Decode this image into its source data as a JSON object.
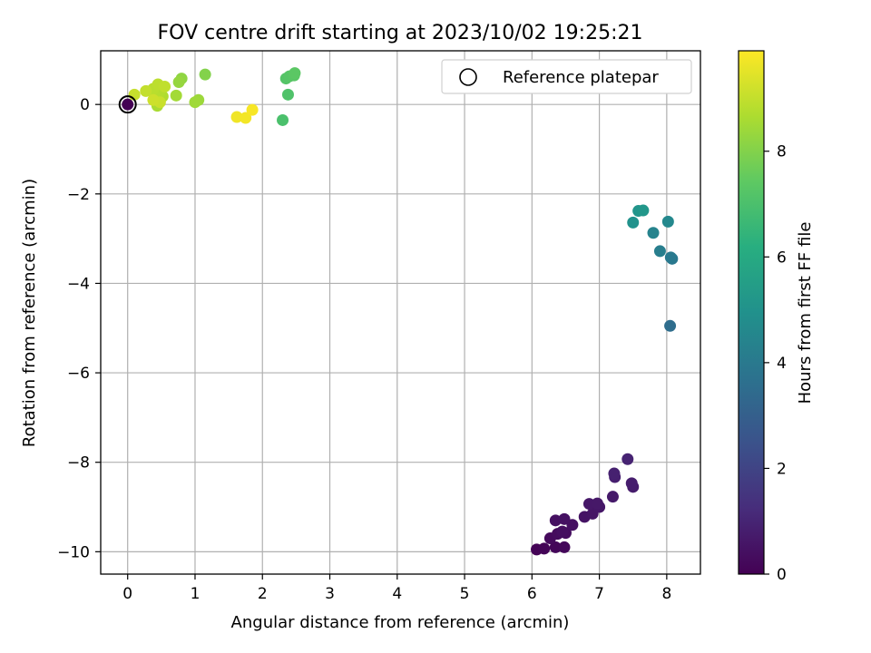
{
  "chart_data": {
    "type": "scatter",
    "title": "FOV centre drift starting at 2023/10/02 19:25:21",
    "xlabel": "Angular distance from reference (arcmin)",
    "ylabel": "Rotation from reference (arcmin)",
    "xlim": [
      -0.4,
      8.5
    ],
    "ylim": [
      -10.5,
      1.2
    ],
    "x_ticks": [
      0,
      1,
      2,
      3,
      4,
      5,
      6,
      7,
      8
    ],
    "y_ticks": [
      0,
      -2,
      -4,
      -6,
      -8,
      -10
    ],
    "x_tick_labels": [
      "0",
      "1",
      "2",
      "3",
      "4",
      "5",
      "6",
      "7",
      "8"
    ],
    "y_tick_labels": [
      "0",
      "−2",
      "−4",
      "−6",
      "−8",
      "−10"
    ],
    "grid": true,
    "legend": {
      "placement": "top-right",
      "entries": [
        "Reference platepar"
      ]
    },
    "colorbar": {
      "label": "Hours from first FF file",
      "colormap": "viridis",
      "range": [
        0,
        9.9
      ],
      "ticks": [
        0,
        2,
        4,
        6,
        8
      ],
      "tick_labels": [
        "0",
        "2",
        "4",
        "6",
        "8"
      ]
    },
    "reference_point": {
      "x": 0,
      "y": 0
    },
    "points": [
      {
        "x": 0.0,
        "y": 0.0,
        "h": 0.0
      },
      {
        "x": 6.07,
        "y": -9.95,
        "h": 0.05
      },
      {
        "x": 6.18,
        "y": -9.93,
        "h": 0.1
      },
      {
        "x": 6.35,
        "y": -9.9,
        "h": 0.15
      },
      {
        "x": 6.48,
        "y": -9.9,
        "h": 0.2
      },
      {
        "x": 6.27,
        "y": -9.7,
        "h": 0.25
      },
      {
        "x": 6.38,
        "y": -9.6,
        "h": 0.3
      },
      {
        "x": 6.5,
        "y": -9.58,
        "h": 0.35
      },
      {
        "x": 6.45,
        "y": -9.55,
        "h": 0.38
      },
      {
        "x": 6.6,
        "y": -9.4,
        "h": 0.4
      },
      {
        "x": 6.35,
        "y": -9.3,
        "h": 0.42
      },
      {
        "x": 6.48,
        "y": -9.27,
        "h": 0.45
      },
      {
        "x": 6.78,
        "y": -9.22,
        "h": 0.5
      },
      {
        "x": 6.9,
        "y": -9.15,
        "h": 0.55
      },
      {
        "x": 7.0,
        "y": -9.0,
        "h": 0.6
      },
      {
        "x": 6.85,
        "y": -8.93,
        "h": 0.62
      },
      {
        "x": 6.97,
        "y": -8.92,
        "h": 0.65
      },
      {
        "x": 7.2,
        "y": -8.77,
        "h": 0.7
      },
      {
        "x": 7.5,
        "y": -8.55,
        "h": 0.75
      },
      {
        "x": 7.48,
        "y": -8.47,
        "h": 0.8
      },
      {
        "x": 7.23,
        "y": -8.33,
        "h": 0.85
      },
      {
        "x": 7.22,
        "y": -8.25,
        "h": 0.9
      },
      {
        "x": 7.42,
        "y": -7.93,
        "h": 0.95
      },
      {
        "x": 8.05,
        "y": -4.95,
        "h": 3.5
      },
      {
        "x": 8.08,
        "y": -3.45,
        "h": 3.9
      },
      {
        "x": 8.06,
        "y": -3.42,
        "h": 4.0
      },
      {
        "x": 7.9,
        "y": -3.28,
        "h": 4.2
      },
      {
        "x": 7.8,
        "y": -2.87,
        "h": 4.4
      },
      {
        "x": 8.02,
        "y": -2.62,
        "h": 4.6
      },
      {
        "x": 7.5,
        "y": -2.64,
        "h": 5.0
      },
      {
        "x": 7.58,
        "y": -2.38,
        "h": 5.1
      },
      {
        "x": 7.65,
        "y": -2.37,
        "h": 5.2
      },
      {
        "x": 2.3,
        "y": -0.35,
        "h": 7.0
      },
      {
        "x": 2.38,
        "y": 0.22,
        "h": 7.1
      },
      {
        "x": 2.35,
        "y": 0.58,
        "h": 7.2
      },
      {
        "x": 2.4,
        "y": 0.63,
        "h": 7.25
      },
      {
        "x": 2.47,
        "y": 0.65,
        "h": 7.3
      },
      {
        "x": 2.48,
        "y": 0.7,
        "h": 7.35
      },
      {
        "x": 1.15,
        "y": 0.67,
        "h": 8.0
      },
      {
        "x": 0.8,
        "y": 0.58,
        "h": 8.2
      },
      {
        "x": 0.76,
        "y": 0.5,
        "h": 8.3
      },
      {
        "x": 1.05,
        "y": 0.1,
        "h": 8.4
      },
      {
        "x": 1.0,
        "y": 0.05,
        "h": 8.45
      },
      {
        "x": 0.72,
        "y": 0.2,
        "h": 8.5
      },
      {
        "x": 0.44,
        "y": -0.03,
        "h": 8.6
      },
      {
        "x": 0.52,
        "y": 0.18,
        "h": 8.7
      },
      {
        "x": 0.47,
        "y": 0.25,
        "h": 8.75
      },
      {
        "x": 0.4,
        "y": 0.2,
        "h": 8.8
      },
      {
        "x": 0.38,
        "y": 0.35,
        "h": 8.85
      },
      {
        "x": 0.45,
        "y": 0.45,
        "h": 8.9
      },
      {
        "x": 0.55,
        "y": 0.4,
        "h": 8.95
      },
      {
        "x": 0.27,
        "y": 0.3,
        "h": 9.0
      },
      {
        "x": 0.1,
        "y": 0.22,
        "h": 9.05
      },
      {
        "x": 0.48,
        "y": 0.05,
        "h": 9.1
      },
      {
        "x": 0.38,
        "y": 0.1,
        "h": 9.15
      },
      {
        "x": 1.62,
        "y": -0.28,
        "h": 9.7
      },
      {
        "x": 1.75,
        "y": -0.3,
        "h": 9.75
      },
      {
        "x": 1.85,
        "y": -0.12,
        "h": 9.8
      }
    ]
  }
}
